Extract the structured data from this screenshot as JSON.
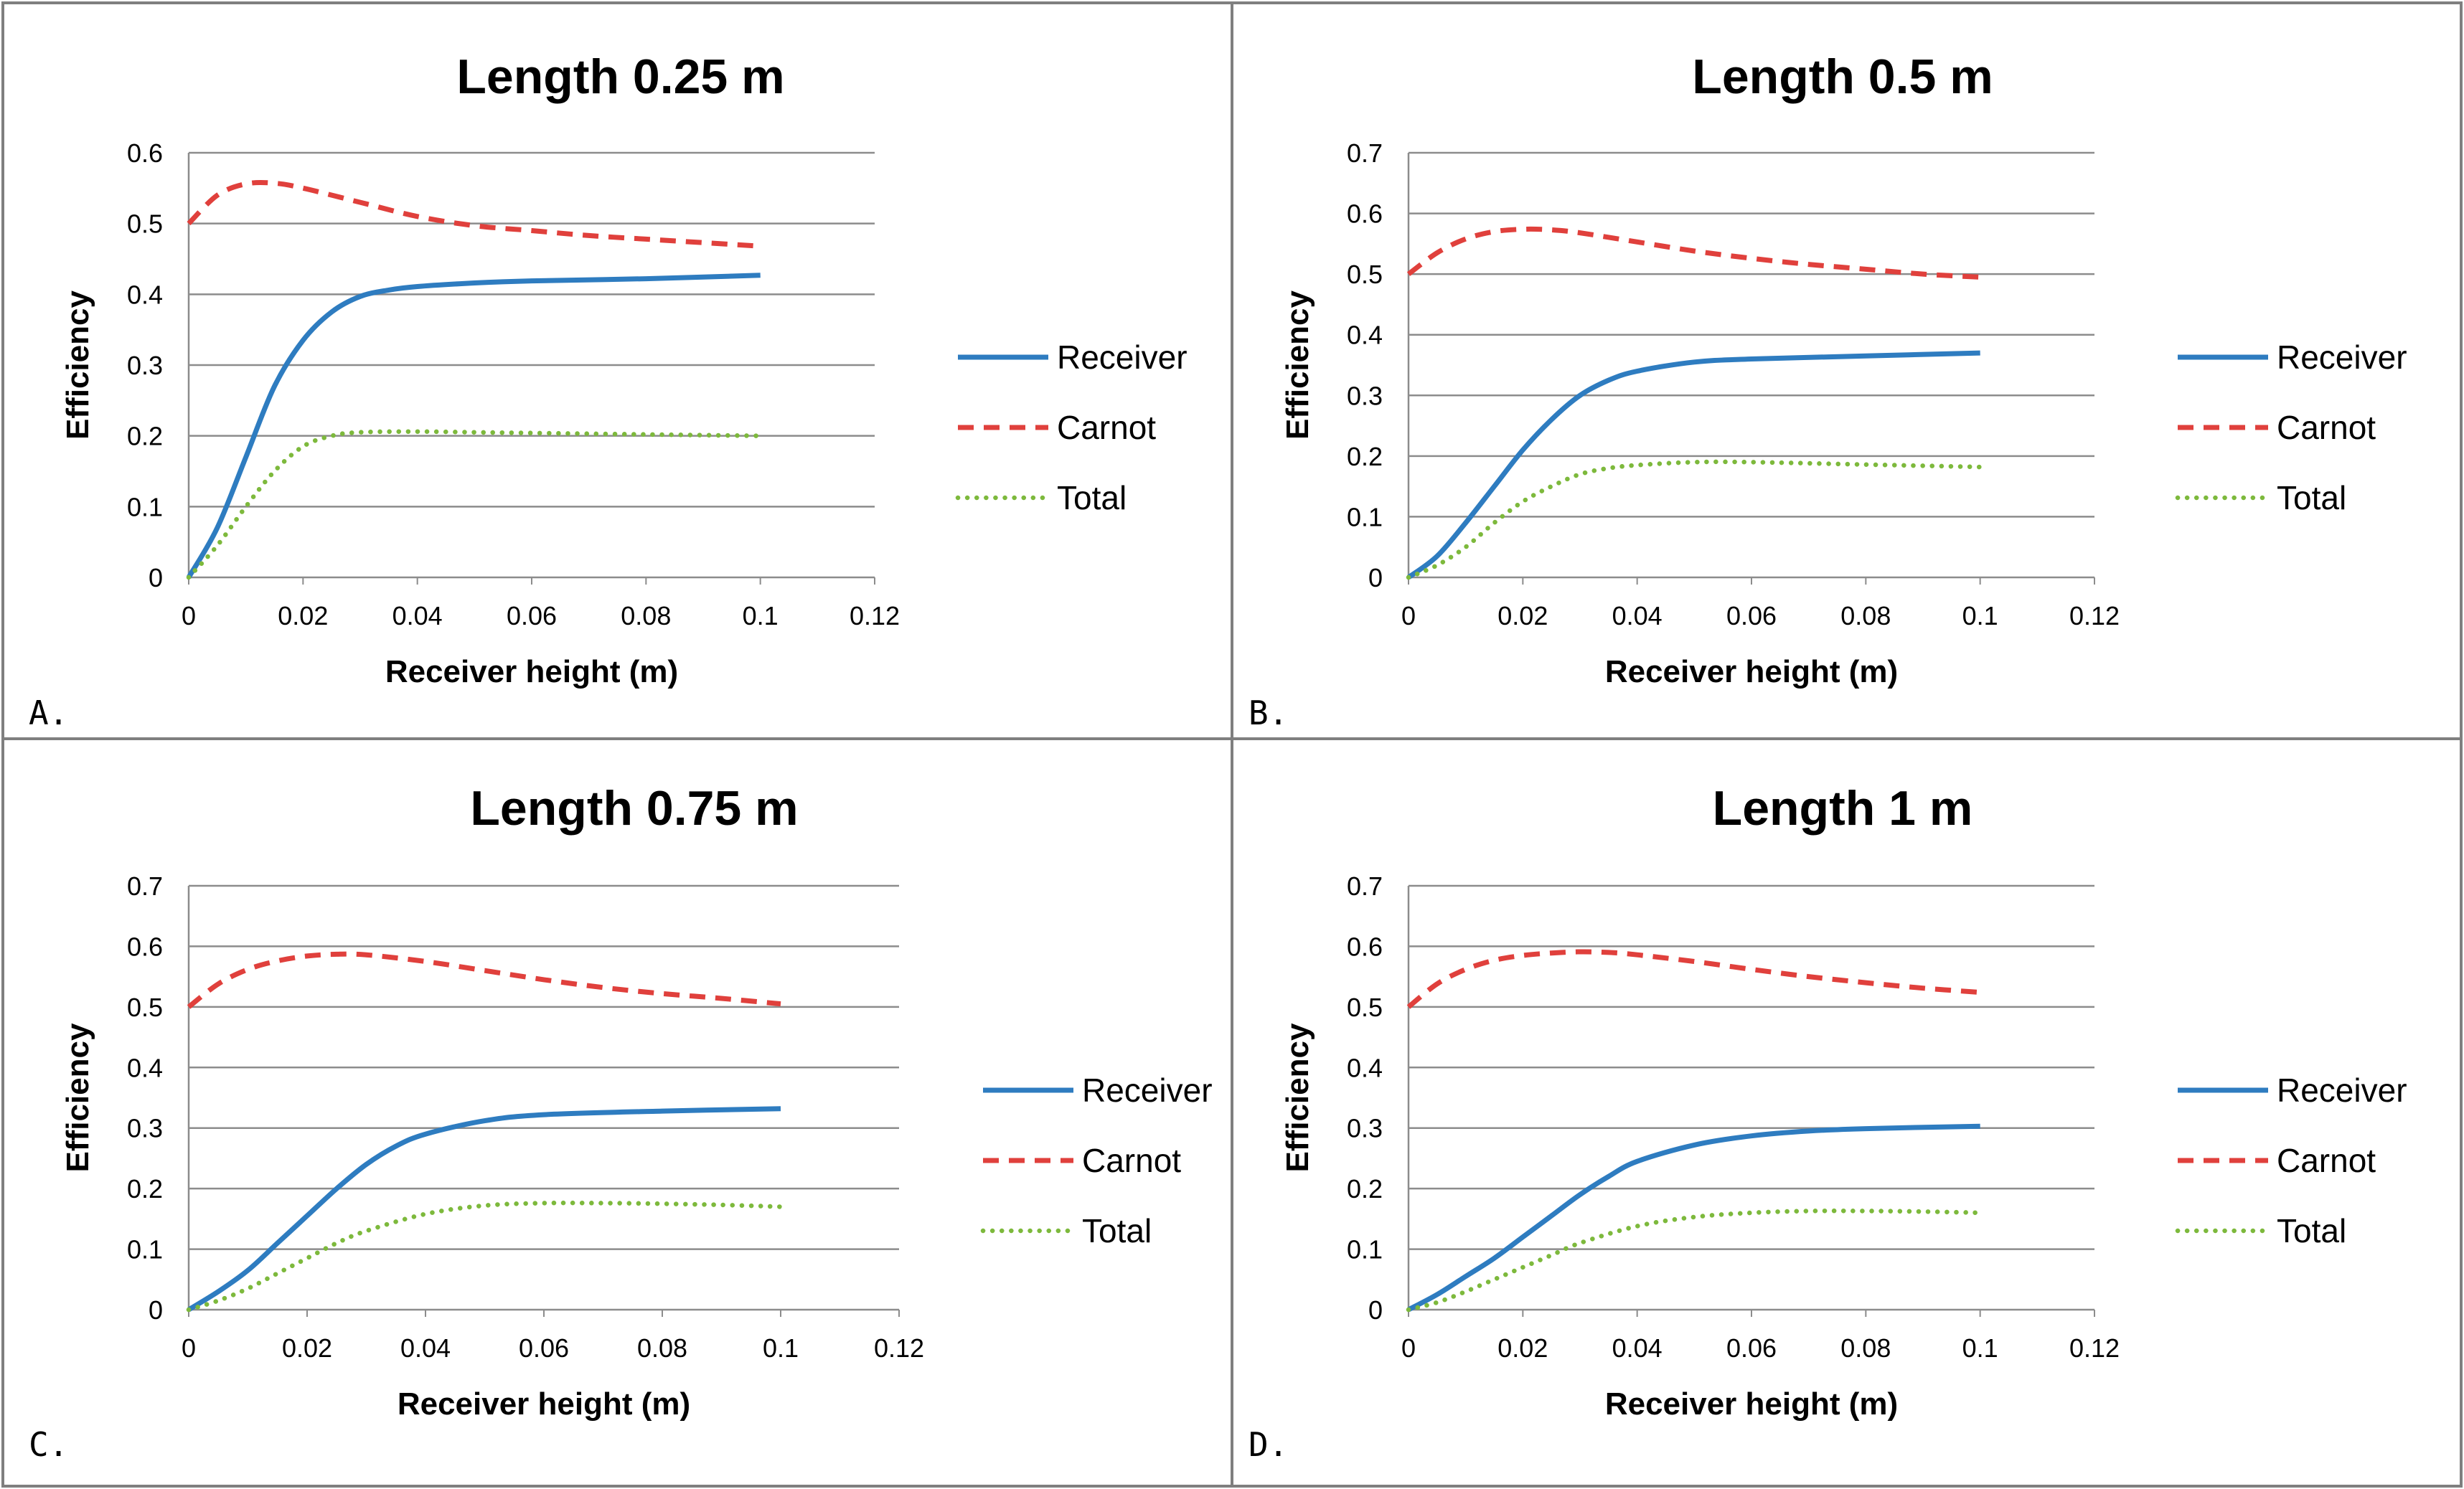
{
  "colors": {
    "receiver": "#2E7CC0",
    "carnot": "#E0403C",
    "total": "#7DB93C",
    "grid": "#8C8C8C",
    "frame": "#7F7F7F"
  },
  "chart_data": [
    {
      "type": "line",
      "panel": "A.",
      "title": "Length 0.25 m",
      "xlabel": "Receiver height (m)",
      "ylabel": "Efficiency",
      "xlim": [
        0,
        0.12
      ],
      "ylim": [
        0,
        0.6
      ],
      "xticks": [
        "0",
        "0.02",
        "0.04",
        "0.06",
        "0.08",
        "0.1",
        "0.12"
      ],
      "yticks": [
        "0",
        "0.1",
        "0.2",
        "0.3",
        "0.4",
        "0.5",
        "0.6"
      ],
      "grid": true,
      "legend": "right",
      "series": [
        {
          "name": "Receiver",
          "style": "solid",
          "x": [
            0,
            0.005,
            0.01,
            0.015,
            0.02,
            0.025,
            0.03,
            0.035,
            0.04,
            0.05,
            0.06,
            0.08,
            0.1
          ],
          "y": [
            0,
            0.07,
            0.17,
            0.27,
            0.335,
            0.375,
            0.397,
            0.406,
            0.411,
            0.416,
            0.419,
            0.422,
            0.427
          ]
        },
        {
          "name": "Carnot",
          "style": "dashed",
          "x": [
            0,
            0.005,
            0.01,
            0.015,
            0.02,
            0.03,
            0.04,
            0.05,
            0.06,
            0.07,
            0.08,
            0.09,
            0.1
          ],
          "y": [
            0.5,
            0.54,
            0.556,
            0.557,
            0.55,
            0.53,
            0.51,
            0.497,
            0.49,
            0.483,
            0.478,
            0.473,
            0.468
          ]
        },
        {
          "name": "Total",
          "style": "dotted",
          "x": [
            0,
            0.005,
            0.01,
            0.015,
            0.02,
            0.025,
            0.03,
            0.04,
            0.05,
            0.06,
            0.08,
            0.1
          ],
          "y": [
            0,
            0.045,
            0.1,
            0.15,
            0.185,
            0.2,
            0.205,
            0.206,
            0.205,
            0.204,
            0.202,
            0.2
          ]
        }
      ]
    },
    {
      "type": "line",
      "panel": "B.",
      "title": "Length 0.5 m",
      "xlabel": "Receiver height (m)",
      "ylabel": "Efficiency",
      "xlim": [
        0,
        0.12
      ],
      "ylim": [
        0,
        0.7
      ],
      "xticks": [
        "0",
        "0.02",
        "0.04",
        "0.06",
        "0.08",
        "0.1",
        "0.12"
      ],
      "yticks": [
        "0",
        "0.1",
        "0.2",
        "0.3",
        "0.4",
        "0.5",
        "0.6",
        "0.7"
      ],
      "grid": true,
      "legend": "right",
      "series": [
        {
          "name": "Receiver",
          "style": "solid",
          "x": [
            0,
            0.005,
            0.01,
            0.015,
            0.02,
            0.025,
            0.03,
            0.035,
            0.04,
            0.05,
            0.06,
            0.08,
            0.1
          ],
          "y": [
            0,
            0.035,
            0.09,
            0.15,
            0.21,
            0.26,
            0.3,
            0.325,
            0.34,
            0.355,
            0.36,
            0.365,
            0.37
          ]
        },
        {
          "name": "Carnot",
          "style": "dashed",
          "x": [
            0,
            0.005,
            0.01,
            0.015,
            0.02,
            0.025,
            0.03,
            0.04,
            0.05,
            0.06,
            0.07,
            0.08,
            0.09,
            0.1
          ],
          "y": [
            0.5,
            0.535,
            0.558,
            0.57,
            0.574,
            0.573,
            0.568,
            0.553,
            0.538,
            0.526,
            0.516,
            0.508,
            0.5,
            0.495
          ]
        },
        {
          "name": "Total",
          "style": "dotted",
          "x": [
            0,
            0.005,
            0.01,
            0.015,
            0.02,
            0.025,
            0.03,
            0.035,
            0.04,
            0.05,
            0.06,
            0.08,
            0.1
          ],
          "y": [
            0,
            0.02,
            0.05,
            0.09,
            0.125,
            0.15,
            0.17,
            0.18,
            0.185,
            0.19,
            0.19,
            0.186,
            0.182
          ]
        }
      ]
    },
    {
      "type": "line",
      "panel": "C.",
      "title": "Length 0.75 m",
      "xlabel": "Receiver height (m)",
      "ylabel": "Efficiency",
      "xlim": [
        0,
        0.12
      ],
      "ylim": [
        0,
        0.7
      ],
      "xticks": [
        "0",
        "0.02",
        "0.04",
        "0.06",
        "0.08",
        "0.1",
        "0.12"
      ],
      "yticks": [
        "0",
        "0.1",
        "0.2",
        "0.3",
        "0.4",
        "0.5",
        "0.6",
        "0.7"
      ],
      "grid": true,
      "legend": "right",
      "series": [
        {
          "name": "Receiver",
          "style": "solid",
          "x": [
            0,
            0.005,
            0.01,
            0.015,
            0.02,
            0.025,
            0.03,
            0.035,
            0.04,
            0.05,
            0.06,
            0.08,
            0.1
          ],
          "y": [
            0,
            0.03,
            0.065,
            0.11,
            0.155,
            0.2,
            0.24,
            0.27,
            0.29,
            0.312,
            0.322,
            0.328,
            0.332
          ]
        },
        {
          "name": "Carnot",
          "style": "dashed",
          "x": [
            0,
            0.005,
            0.01,
            0.015,
            0.02,
            0.025,
            0.03,
            0.04,
            0.05,
            0.06,
            0.07,
            0.08,
            0.09,
            0.1
          ],
          "y": [
            0.5,
            0.538,
            0.562,
            0.576,
            0.584,
            0.587,
            0.586,
            0.575,
            0.56,
            0.545,
            0.532,
            0.522,
            0.514,
            0.505
          ]
        },
        {
          "name": "Total",
          "style": "dotted",
          "x": [
            0,
            0.005,
            0.01,
            0.015,
            0.02,
            0.025,
            0.03,
            0.04,
            0.05,
            0.06,
            0.07,
            0.08,
            0.09,
            0.1
          ],
          "y": [
            0,
            0.015,
            0.035,
            0.06,
            0.085,
            0.11,
            0.13,
            0.158,
            0.172,
            0.176,
            0.176,
            0.175,
            0.173,
            0.17
          ]
        }
      ]
    },
    {
      "type": "line",
      "panel": "D.",
      "title": "Length 1 m",
      "xlabel": "Receiver height (m)",
      "ylabel": "Efficiency",
      "xlim": [
        0,
        0.12
      ],
      "ylim": [
        0,
        0.7
      ],
      "xticks": [
        "0",
        "0.02",
        "0.04",
        "0.06",
        "0.08",
        "0.1",
        "0.12"
      ],
      "yticks": [
        "0",
        "0.1",
        "0.2",
        "0.3",
        "0.4",
        "0.5",
        "0.6",
        "0.7"
      ],
      "grid": true,
      "legend": "right",
      "series": [
        {
          "name": "Receiver",
          "style": "solid",
          "x": [
            0,
            0.005,
            0.01,
            0.015,
            0.02,
            0.025,
            0.03,
            0.035,
            0.04,
            0.05,
            0.06,
            0.07,
            0.08,
            0.1
          ],
          "y": [
            0,
            0.025,
            0.055,
            0.085,
            0.12,
            0.155,
            0.19,
            0.22,
            0.245,
            0.272,
            0.287,
            0.295,
            0.299,
            0.303
          ]
        },
        {
          "name": "Carnot",
          "style": "dashed",
          "x": [
            0,
            0.005,
            0.01,
            0.015,
            0.02,
            0.025,
            0.03,
            0.035,
            0.04,
            0.05,
            0.06,
            0.07,
            0.08,
            0.09,
            0.1
          ],
          "y": [
            0.5,
            0.538,
            0.562,
            0.577,
            0.585,
            0.589,
            0.591,
            0.59,
            0.586,
            0.575,
            0.562,
            0.55,
            0.54,
            0.531,
            0.524
          ]
        },
        {
          "name": "Total",
          "style": "dotted",
          "x": [
            0,
            0.005,
            0.01,
            0.015,
            0.02,
            0.025,
            0.03,
            0.04,
            0.05,
            0.06,
            0.07,
            0.08,
            0.09,
            0.1
          ],
          "y": [
            0,
            0.012,
            0.03,
            0.05,
            0.07,
            0.09,
            0.11,
            0.138,
            0.153,
            0.16,
            0.163,
            0.163,
            0.162,
            0.16
          ]
        }
      ]
    }
  ]
}
